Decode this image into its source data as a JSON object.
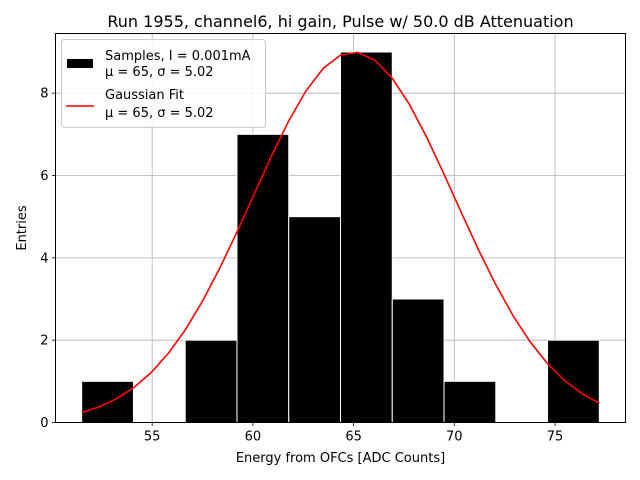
{
  "chart_data": {
    "type": "bar",
    "title": "Run 1955, channel6, hi gain, Pulse w/ 50.0 dB Attenuation",
    "xlabel": "Energy from OFCs [ADC Counts]",
    "ylabel": "Entries",
    "xlim": [
      50.2,
      78.5
    ],
    "ylim": [
      0,
      9.45
    ],
    "xticks": [
      55,
      60,
      65,
      70,
      75
    ],
    "yticks": [
      0,
      2,
      4,
      6,
      8
    ],
    "grid": true,
    "histogram": {
      "name": "Samples",
      "bin_edges": [
        51.5,
        54.07,
        56.64,
        59.21,
        61.78,
        64.35,
        66.92,
        69.49,
        72.06,
        74.63,
        77.2
      ],
      "counts": [
        1,
        0,
        2,
        7,
        5,
        9,
        3,
        1,
        0,
        2
      ],
      "color": "#000000",
      "edgecolor": "#ffffff"
    },
    "fit": {
      "name": "Gaussian Fit",
      "mu": 65,
      "sigma": 5.02,
      "amplitude": 9,
      "x_range": [
        51.5,
        77.2
      ],
      "color": "#ff0000"
    },
    "legend": {
      "position": "top-left",
      "entries": [
        {
          "line1": "Samples, I = 0.001mA",
          "line2": "μ = 65, σ = 5.02"
        },
        {
          "line1": "Gaussian Fit",
          "line2": "μ = 65, σ = 5.02"
        }
      ]
    }
  }
}
